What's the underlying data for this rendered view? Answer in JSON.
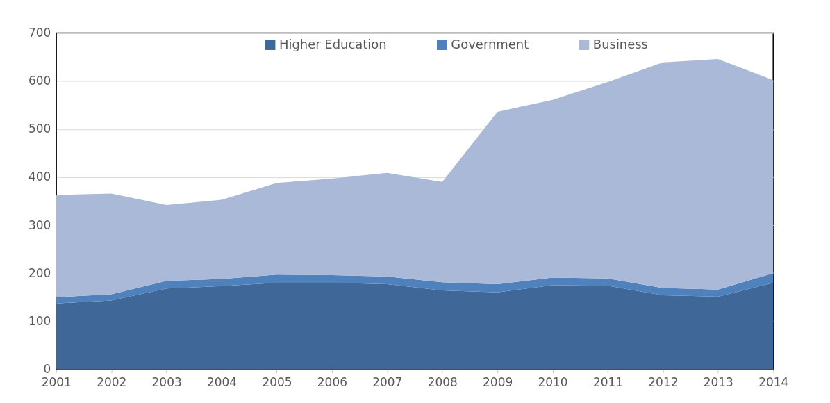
{
  "chart_data": {
    "type": "area",
    "stacked": true,
    "x": [
      2001,
      2002,
      2003,
      2004,
      2005,
      2006,
      2007,
      2008,
      2009,
      2010,
      2011,
      2012,
      2013,
      2014
    ],
    "series": [
      {
        "name": "Higher Education",
        "color": "#3f6899",
        "values": [
          137,
          143,
          168,
          173,
          180,
          180,
          177,
          164,
          160,
          175,
          174,
          154,
          151,
          180
        ]
      },
      {
        "name": "Government",
        "color": "#4f81bd",
        "values": [
          13,
          13,
          16,
          15,
          17,
          16,
          16,
          17,
          17,
          16,
          15,
          15,
          15,
          20
        ]
      },
      {
        "name": "Business",
        "color": "#aab9d7",
        "values": [
          213,
          210,
          158,
          165,
          191,
          201,
          216,
          209,
          359,
          370,
          409,
          470,
          480,
          402
        ]
      }
    ],
    "xlim": [
      2001,
      2014
    ],
    "xticks": [
      2001,
      2002,
      2003,
      2004,
      2005,
      2006,
      2007,
      2008,
      2009,
      2010,
      2011,
      2012,
      2013,
      2014
    ],
    "ylim": [
      0,
      700
    ],
    "yticks": [
      0,
      100,
      200,
      300,
      400,
      500,
      600,
      700
    ],
    "grid": "y",
    "legend": "top"
  }
}
